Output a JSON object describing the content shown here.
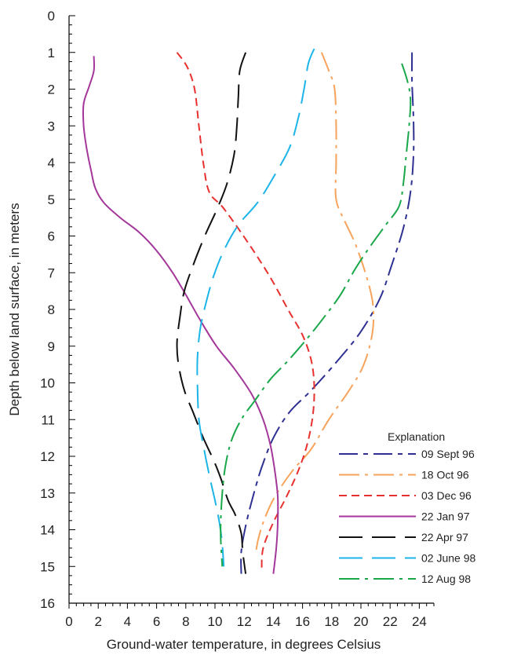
{
  "chart_data": {
    "type": "line",
    "title": "",
    "xlabel": "Ground-water temperature, in degrees Celsius",
    "ylabel": "Depth below land surface, in meters",
    "xlim": [
      0,
      25
    ],
    "ylim": [
      16,
      0
    ],
    "x_axis_position": "bottom",
    "y_axis_inverted": true,
    "x_ticks": [
      0,
      2,
      4,
      6,
      8,
      10,
      12,
      14,
      16,
      18,
      20,
      22,
      24
    ],
    "x_tick_labels": [
      "0",
      "2",
      "4",
      "6",
      "8",
      "10",
      "12",
      "14",
      "16",
      "18",
      "20",
      "22",
      "24"
    ],
    "y_ticks": [
      0,
      1,
      2,
      3,
      4,
      5,
      6,
      7,
      8,
      9,
      10,
      11,
      12,
      13,
      14,
      15,
      16
    ],
    "y_tick_labels": [
      "0",
      "1",
      "2",
      "3",
      "4",
      "5",
      "6",
      "7",
      "8",
      "9",
      "10",
      "11",
      "12",
      "13",
      "14",
      "15",
      "16"
    ],
    "grid": false,
    "legend": {
      "title": "Explanation",
      "placement": "bottom-right"
    },
    "series": [
      {
        "name": "09 Sept 96",
        "color": "#2e3192",
        "dash": "long-short-dash",
        "points": [
          [
            23.5,
            1.0
          ],
          [
            23.5,
            1.8
          ],
          [
            23.6,
            2.8
          ],
          [
            23.6,
            3.8
          ],
          [
            23.4,
            4.8
          ],
          [
            22.9,
            5.8
          ],
          [
            22.1,
            6.8
          ],
          [
            21.3,
            7.7
          ],
          [
            20.0,
            8.6
          ],
          [
            18.4,
            9.4
          ],
          [
            16.6,
            10.2
          ],
          [
            15.1,
            10.8
          ],
          [
            14.0,
            11.5
          ],
          [
            13.2,
            12.3
          ],
          [
            12.6,
            13.1
          ],
          [
            12.1,
            13.9
          ],
          [
            11.8,
            14.6
          ],
          [
            11.8,
            15.2
          ]
        ]
      },
      {
        "name": "18 Oct 96",
        "color": "#f7a35c",
        "dash": "long-dash-dot",
        "points": [
          [
            17.3,
            1.0
          ],
          [
            17.8,
            1.5
          ],
          [
            18.2,
            2.0
          ],
          [
            18.3,
            3.0
          ],
          [
            18.3,
            4.0
          ],
          [
            18.3,
            5.0
          ],
          [
            18.9,
            5.6
          ],
          [
            19.6,
            6.2
          ],
          [
            20.3,
            7.0
          ],
          [
            20.8,
            7.8
          ],
          [
            20.8,
            8.6
          ],
          [
            20.2,
            9.5
          ],
          [
            19.2,
            10.2
          ],
          [
            17.8,
            11.0
          ],
          [
            16.6,
            11.8
          ],
          [
            15.3,
            12.4
          ],
          [
            14.1,
            13.1
          ],
          [
            13.4,
            13.7
          ],
          [
            13.0,
            14.2
          ],
          [
            12.8,
            14.6
          ]
        ]
      },
      {
        "name": "03 Dec 96",
        "color": "#e8312f",
        "dash": "short-dash",
        "points": [
          [
            7.4,
            1.0
          ],
          [
            8.1,
            1.4
          ],
          [
            8.6,
            2.0
          ],
          [
            8.9,
            3.0
          ],
          [
            9.2,
            4.0
          ],
          [
            9.6,
            4.8
          ],
          [
            10.5,
            5.2
          ],
          [
            11.6,
            5.8
          ],
          [
            12.8,
            6.5
          ],
          [
            13.9,
            7.2
          ],
          [
            15.0,
            8.0
          ],
          [
            16.0,
            8.7
          ],
          [
            16.6,
            9.4
          ],
          [
            16.8,
            10.1
          ],
          [
            16.7,
            10.9
          ],
          [
            16.3,
            11.7
          ],
          [
            15.7,
            12.4
          ],
          [
            14.9,
            13.1
          ],
          [
            14.0,
            13.8
          ],
          [
            13.3,
            14.5
          ],
          [
            13.2,
            15.1
          ]
        ]
      },
      {
        "name": "22 Jan 97",
        "color": "#a3379a",
        "dash": "solid",
        "points": [
          [
            1.7,
            1.1
          ],
          [
            1.7,
            1.5
          ],
          [
            1.4,
            1.9
          ],
          [
            1.0,
            2.4
          ],
          [
            1.0,
            3.0
          ],
          [
            1.2,
            3.6
          ],
          [
            1.5,
            4.2
          ],
          [
            1.8,
            4.7
          ],
          [
            2.4,
            5.1
          ],
          [
            3.5,
            5.5
          ],
          [
            4.8,
            5.9
          ],
          [
            6.0,
            6.4
          ],
          [
            7.1,
            7.0
          ],
          [
            8.0,
            7.6
          ],
          [
            9.0,
            8.3
          ],
          [
            10.1,
            9.0
          ],
          [
            11.3,
            9.6
          ],
          [
            12.5,
            10.3
          ],
          [
            13.3,
            11.0
          ],
          [
            13.8,
            11.7
          ],
          [
            14.1,
            12.4
          ],
          [
            14.3,
            13.1
          ],
          [
            14.3,
            13.8
          ],
          [
            14.2,
            14.5
          ],
          [
            14.0,
            15.2
          ]
        ]
      },
      {
        "name": "22 Apr 97",
        "color": "#111111",
        "dash": "long-dash",
        "points": [
          [
            12.1,
            1.0
          ],
          [
            11.7,
            1.5
          ],
          [
            11.6,
            2.2
          ],
          [
            11.5,
            3.0
          ],
          [
            11.3,
            3.8
          ],
          [
            10.8,
            4.6
          ],
          [
            10.1,
            5.3
          ],
          [
            9.3,
            6.0
          ],
          [
            8.5,
            6.8
          ],
          [
            7.9,
            7.5
          ],
          [
            7.6,
            8.2
          ],
          [
            7.4,
            8.9
          ],
          [
            7.5,
            9.5
          ],
          [
            7.9,
            10.2
          ],
          [
            8.5,
            10.8
          ],
          [
            9.2,
            11.5
          ],
          [
            9.9,
            12.1
          ],
          [
            10.4,
            12.6
          ],
          [
            10.9,
            13.2
          ],
          [
            11.4,
            13.6
          ],
          [
            11.8,
            14.1
          ],
          [
            11.9,
            14.6
          ],
          [
            12.1,
            15.2
          ]
        ]
      },
      {
        "name": "02 June 98",
        "color": "#1cb5e8",
        "dash": "long-dash",
        "points": [
          [
            16.8,
            0.9
          ],
          [
            16.4,
            1.3
          ],
          [
            16.1,
            2.0
          ],
          [
            15.7,
            2.8
          ],
          [
            15.1,
            3.6
          ],
          [
            14.0,
            4.4
          ],
          [
            12.9,
            5.1
          ],
          [
            11.6,
            5.7
          ],
          [
            10.6,
            6.4
          ],
          [
            9.9,
            7.1
          ],
          [
            9.4,
            7.8
          ],
          [
            9.0,
            8.5
          ],
          [
            8.8,
            9.3
          ],
          [
            8.8,
            10.1
          ],
          [
            8.9,
            11.0
          ],
          [
            9.2,
            11.7
          ],
          [
            9.6,
            12.5
          ],
          [
            10.0,
            13.2
          ],
          [
            10.3,
            13.8
          ],
          [
            10.5,
            14.4
          ],
          [
            10.6,
            15.0
          ]
        ]
      },
      {
        "name": "12 Aug 98",
        "color": "#19a74a",
        "dash": "long-dash-dot",
        "points": [
          [
            22.8,
            1.3
          ],
          [
            23.2,
            1.8
          ],
          [
            23.4,
            2.3
          ],
          [
            23.3,
            3.0
          ],
          [
            23.1,
            3.8
          ],
          [
            22.9,
            4.6
          ],
          [
            22.6,
            5.2
          ],
          [
            21.7,
            5.7
          ],
          [
            20.6,
            6.3
          ],
          [
            19.6,
            6.9
          ],
          [
            18.6,
            7.6
          ],
          [
            17.5,
            8.2
          ],
          [
            16.3,
            8.8
          ],
          [
            15.0,
            9.4
          ],
          [
            13.8,
            9.9
          ],
          [
            12.7,
            10.5
          ],
          [
            11.8,
            11.0
          ],
          [
            11.1,
            11.6
          ],
          [
            10.7,
            12.3
          ],
          [
            10.5,
            13.0
          ],
          [
            10.4,
            13.7
          ],
          [
            10.4,
            14.3
          ],
          [
            10.5,
            15.0
          ]
        ]
      }
    ]
  }
}
